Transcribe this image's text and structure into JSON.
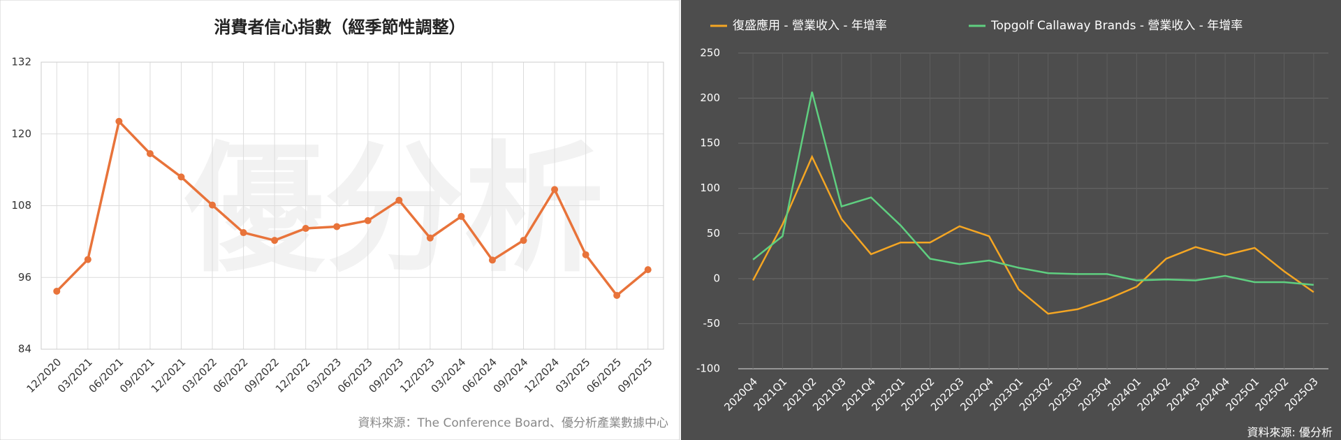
{
  "chart_data": [
    {
      "type": "line",
      "title": "消費者信心指數（經季節性調整）",
      "watermark": "優分析",
      "source": "資料來源：The Conference Board、優分析產業數據中心",
      "categories": [
        "12/2020",
        "03/2021",
        "06/2021",
        "09/2021",
        "12/2021",
        "03/2022",
        "06/2022",
        "09/2022",
        "12/2022",
        "03/2023",
        "06/2023",
        "09/2023",
        "12/2023",
        "03/2024",
        "06/2024",
        "09/2024",
        "12/2024",
        "03/2025",
        "06/2025",
        "09/2025"
      ],
      "series": [
        {
          "color": "#e8733a",
          "values": [
            93.7,
            99.0,
            122.1,
            116.7,
            112.8,
            108.1,
            103.5,
            102.2,
            104.2,
            104.5,
            105.5,
            108.9,
            102.6,
            106.2,
            98.9,
            102.2,
            110.7,
            99.8,
            93.0,
            97.3
          ]
        }
      ],
      "ylim": [
        84,
        132
      ],
      "yticks": [
        84,
        96,
        108,
        120,
        132
      ],
      "grid": true,
      "markers": true,
      "background": "#ffffff"
    },
    {
      "type": "line",
      "source": "資料來源: 優分析",
      "categories": [
        "2020Q4",
        "2021Q1",
        "2021Q2",
        "2021Q3",
        "2021Q4",
        "2022Q1",
        "2022Q2",
        "2022Q3",
        "2022Q4",
        "2023Q1",
        "2023Q2",
        "2023Q3",
        "2023Q4",
        "2024Q1",
        "2024Q2",
        "2024Q3",
        "2024Q4",
        "2025Q1",
        "2025Q2",
        "2025Q3"
      ],
      "series": [
        {
          "name": "復盛應用 - 營業收入 - 年增率",
          "color": "#f5a623",
          "values": [
            -2,
            60,
            135,
            66,
            27,
            40,
            40,
            58,
            47,
            -12,
            -39,
            -34,
            -23,
            -9,
            22,
            35,
            26,
            34,
            8,
            -15
          ]
        },
        {
          "name": "Topgolf Callaway Brands - 營業收入 - 年增率",
          "color": "#5fcf80",
          "values": [
            21,
            47,
            207,
            80,
            90,
            59,
            22,
            16,
            20,
            12,
            6,
            5,
            5,
            -2,
            -1,
            -2,
            3,
            -4,
            -4,
            -7
          ]
        }
      ],
      "ylim": [
        -100,
        250
      ],
      "yticks": [
        -100,
        -50,
        0,
        50,
        100,
        150,
        200,
        250
      ],
      "grid": true,
      "markers": false,
      "legend": "top",
      "background": "#4d4d4d"
    }
  ]
}
